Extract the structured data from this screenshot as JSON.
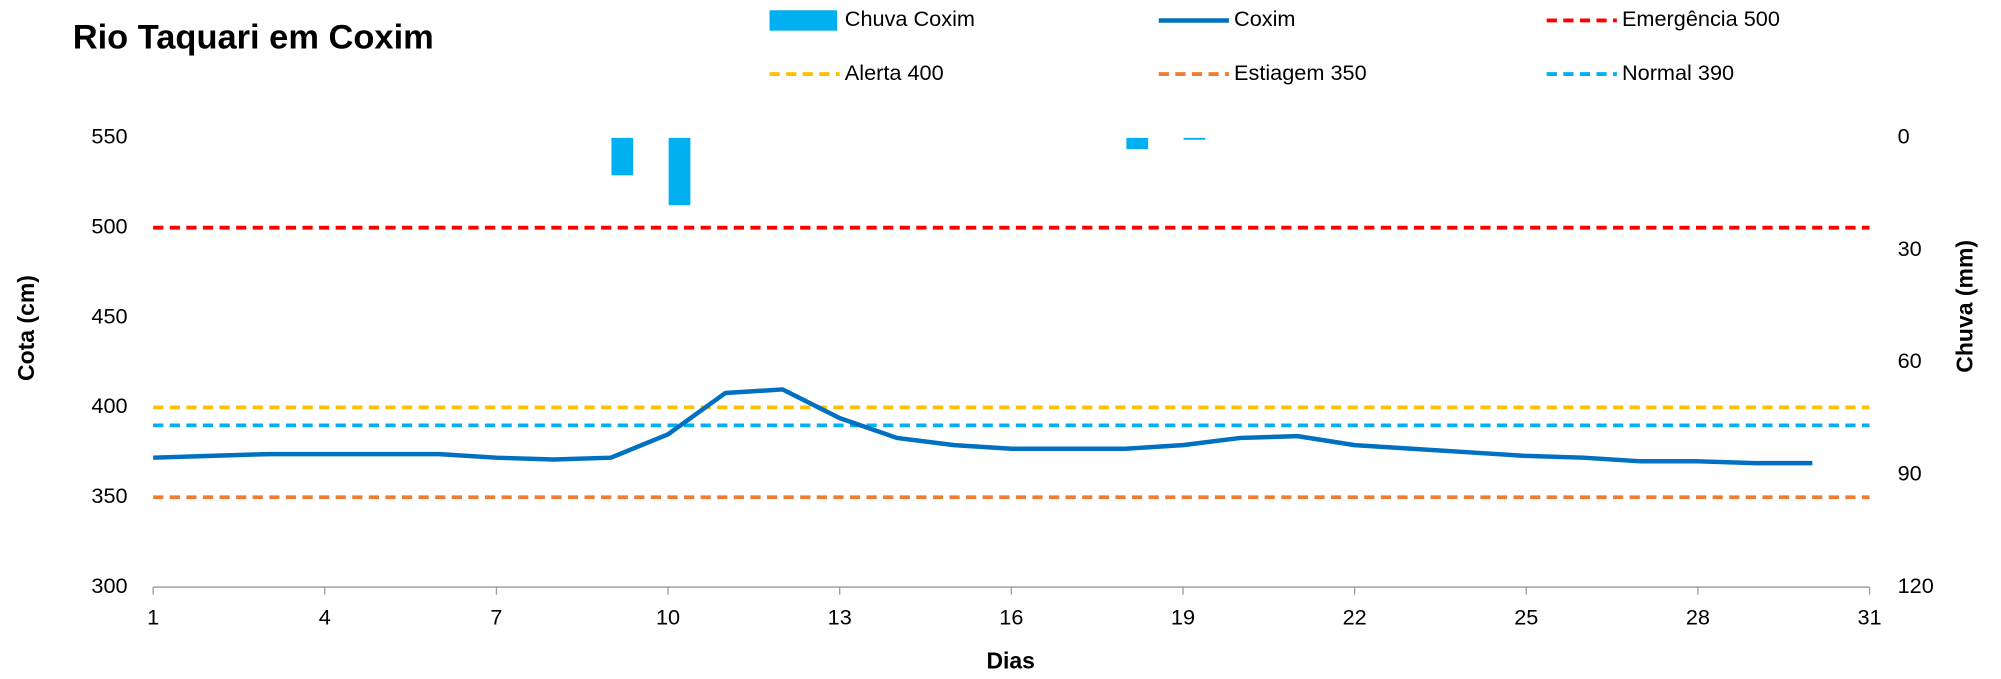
{
  "chart_data": {
    "type": "line",
    "title": "Rio Taquari em Coxim",
    "x_label": "Dias",
    "y_label": "Cota   (cm)",
    "y2_label": "Chuva (mm)",
    "xlim": [
      1,
      31
    ],
    "xticks": [
      1,
      4,
      7,
      10,
      13,
      16,
      19,
      22,
      25,
      28,
      31
    ],
    "ylim": [
      300,
      550
    ],
    "yticks": [
      300,
      350,
      400,
      450,
      500,
      550
    ],
    "y2lim": [
      0,
      120
    ],
    "y2ticks": [
      0,
      30,
      60,
      90,
      120
    ],
    "y2_inverted": true,
    "x": [
      1,
      2,
      3,
      4,
      5,
      6,
      7,
      8,
      9,
      10,
      11,
      12,
      13,
      14,
      15,
      16,
      17,
      18,
      19,
      20,
      21,
      22,
      23,
      24,
      25,
      26,
      27,
      28,
      29,
      30
    ],
    "series": [
      {
        "name": "Chuva Coxim",
        "type": "bar",
        "axis": "y2",
        "color": "#00b0f0",
        "values": [
          0,
          0,
          0,
          0,
          0,
          0,
          0,
          0,
          10,
          18,
          0,
          0,
          0,
          0,
          0,
          0,
          0,
          3,
          0.5,
          0,
          0,
          0,
          0,
          0,
          0,
          0,
          0,
          0,
          0,
          0
        ]
      },
      {
        "name": "Coxim",
        "type": "line",
        "color": "#0070c0",
        "values": [
          372,
          373,
          374,
          374,
          374,
          374,
          372,
          371,
          372,
          385,
          408,
          410,
          394,
          383,
          379,
          377,
          377,
          377,
          379,
          383,
          384,
          379,
          377,
          375,
          373,
          372,
          370,
          370,
          369,
          369
        ]
      }
    ],
    "reference_lines": [
      {
        "name": "Emergência 500",
        "value": 500,
        "color": "#ff0000"
      },
      {
        "name": "Alerta 400",
        "value": 400,
        "color": "#ffc000"
      },
      {
        "name": "Estiagem 350",
        "value": 350,
        "color": "#ed7d31"
      },
      {
        "name": "Normal  390",
        "value": 390,
        "color": "#00b0f0"
      }
    ]
  }
}
